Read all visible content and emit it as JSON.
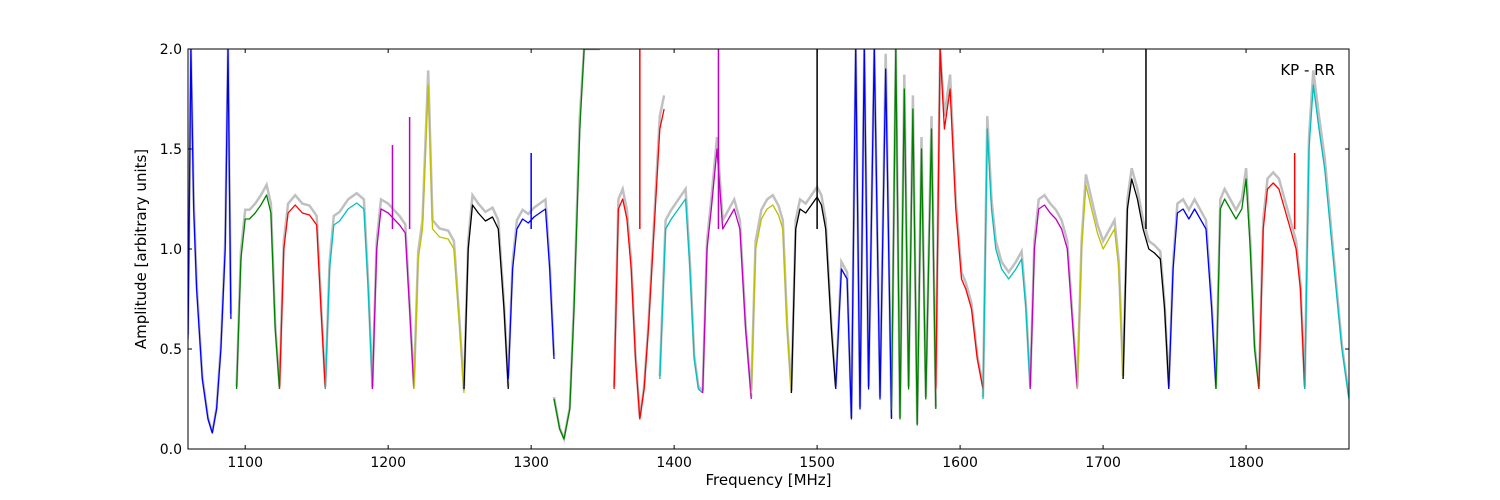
{
  "chart_data": {
    "type": "line",
    "annotation": "KP - RR",
    "xlabel": "Frequency [MHz]",
    "ylabel": "Amplitude [arbitrary units]",
    "xlim": [
      1060,
      1872
    ],
    "ylim": [
      0,
      2.0
    ],
    "xticks": [
      1100,
      1200,
      1300,
      1400,
      1500,
      1600,
      1700,
      1800
    ],
    "yticks": [
      0.0,
      0.5,
      1.0,
      1.5,
      2.0
    ],
    "xtick_labels": [
      "1100",
      "1200",
      "1300",
      "1400",
      "1500",
      "1600",
      "1700",
      "1800"
    ],
    "ytick_labels": [
      "0.0",
      "0.5",
      "1.0",
      "1.5",
      "2.0"
    ],
    "grid": false,
    "background_color": "#c0c0c0",
    "series": [
      {
        "color": "#0000ff",
        "x": [
          1060,
          1062,
          1064,
          1066,
          1070,
          1074,
          1077,
          1080,
          1083,
          1086,
          1088,
          1090
        ],
        "y": [
          0.55,
          2.0,
          1.2,
          0.8,
          0.35,
          0.15,
          0.08,
          0.2,
          0.5,
          1.0,
          2.0,
          0.65
        ]
      },
      {
        "color": "#008000",
        "x": [
          1094,
          1097,
          1100,
          1103,
          1107,
          1111,
          1115,
          1118,
          1121,
          1124
        ],
        "y": [
          0.3,
          0.95,
          1.15,
          1.15,
          1.18,
          1.22,
          1.27,
          1.18,
          0.6,
          0.3
        ]
      },
      {
        "color": "#ff0000",
        "x": [
          1124,
          1127,
          1130,
          1135,
          1140,
          1145,
          1150,
          1153,
          1156
        ],
        "y": [
          0.3,
          1.0,
          1.18,
          1.22,
          1.18,
          1.17,
          1.12,
          0.7,
          0.3
        ]
      },
      {
        "color": "#00bfbf",
        "x": [
          1156,
          1159,
          1162,
          1166,
          1172,
          1178,
          1183,
          1186,
          1189
        ],
        "y": [
          0.3,
          0.9,
          1.12,
          1.14,
          1.2,
          1.23,
          1.2,
          0.8,
          0.3
        ]
      },
      {
        "color": "#bf00bf",
        "x": [
          1189,
          1192,
          1195,
          1200,
          1204,
          1208,
          1212,
          1215,
          1218
        ],
        "y": [
          0.3,
          1.0,
          1.2,
          1.18,
          1.15,
          1.12,
          1.08,
          0.7,
          0.3
        ]
      },
      {
        "color": "#bfbf00",
        "x": [
          1218,
          1221,
          1224,
          1228,
          1231,
          1236,
          1242,
          1246,
          1250,
          1253
        ],
        "y": [
          0.3,
          0.95,
          1.1,
          1.82,
          1.1,
          1.06,
          1.05,
          1.0,
          0.6,
          0.28
        ]
      },
      {
        "color": "#000000",
        "x": [
          1253,
          1256,
          1259,
          1263,
          1268,
          1273,
          1277,
          1281,
          1284
        ],
        "y": [
          0.3,
          1.0,
          1.22,
          1.18,
          1.14,
          1.16,
          1.1,
          0.7,
          0.3
        ]
      },
      {
        "color": "#0000ff",
        "x": [
          1284,
          1287,
          1290,
          1294,
          1298,
          1302,
          1306,
          1310,
          1313,
          1316
        ],
        "y": [
          0.35,
          0.9,
          1.1,
          1.15,
          1.13,
          1.16,
          1.18,
          1.2,
          0.9,
          0.45
        ]
      },
      {
        "color": "#008000",
        "x": [
          1316,
          1320,
          1323,
          1327,
          1330,
          1334,
          1337,
          1341,
          1344,
          1348
        ],
        "y": [
          0.25,
          0.1,
          0.05,
          0.2,
          0.7,
          1.6,
          2.0,
          2.0,
          2.0,
          2.0
        ]
      },
      {
        "color": "#ff0000",
        "x": [
          1358,
          1361,
          1364,
          1367,
          1370,
          1373,
          1376,
          1379,
          1382,
          1386,
          1390,
          1393
        ],
        "y": [
          0.3,
          1.2,
          1.25,
          1.15,
          0.9,
          0.45,
          0.15,
          0.3,
          0.6,
          1.1,
          1.6,
          1.7
        ]
      },
      {
        "color": "#00bfbf",
        "x": [
          1390,
          1394,
          1398,
          1403,
          1408,
          1411,
          1414,
          1417,
          1420
        ],
        "y": [
          0.35,
          1.1,
          1.15,
          1.2,
          1.25,
          0.9,
          0.45,
          0.3,
          0.28
        ]
      },
      {
        "color": "#bf00bf",
        "x": [
          1420,
          1423,
          1426,
          1430,
          1434,
          1438,
          1442,
          1446,
          1450,
          1454
        ],
        "y": [
          0.28,
          1.0,
          1.2,
          1.5,
          1.1,
          1.15,
          1.2,
          1.1,
          0.6,
          0.25
        ]
      },
      {
        "color": "#bfbf00",
        "x": [
          1454,
          1457,
          1461,
          1465,
          1469,
          1473,
          1476,
          1479,
          1482
        ],
        "y": [
          0.28,
          1.0,
          1.15,
          1.2,
          1.22,
          1.17,
          1.1,
          0.6,
          0.28
        ]
      },
      {
        "color": "#000000",
        "x": [
          1482,
          1485,
          1488,
          1492,
          1496,
          1500,
          1503,
          1506,
          1510,
          1513
        ],
        "y": [
          0.28,
          1.1,
          1.2,
          1.18,
          1.22,
          1.26,
          1.22,
          1.1,
          0.6,
          0.3
        ]
      },
      {
        "color": "#0000ff",
        "x": [
          1513,
          1517,
          1521,
          1524,
          1527,
          1530,
          1533,
          1536,
          1540,
          1544,
          1548,
          1552
        ],
        "y": [
          0.3,
          0.9,
          0.85,
          0.15,
          2.0,
          0.2,
          2.0,
          0.3,
          2.0,
          0.25,
          1.9,
          0.15
        ]
      },
      {
        "color": "#008000",
        "x": [
          1552,
          1555,
          1558,
          1561,
          1564,
          1567,
          1570,
          1573,
          1576,
          1580,
          1583
        ],
        "y": [
          0.2,
          2.0,
          0.15,
          1.8,
          0.3,
          1.7,
          0.12,
          1.5,
          0.25,
          1.6,
          0.2
        ]
      },
      {
        "color": "#ff0000",
        "x": [
          1583,
          1586,
          1589,
          1593,
          1597,
          1601,
          1604,
          1608,
          1612,
          1616
        ],
        "y": [
          0.3,
          2.0,
          1.6,
          1.8,
          1.2,
          0.85,
          0.8,
          0.7,
          0.45,
          0.3
        ]
      },
      {
        "color": "#00bfbf",
        "x": [
          1616,
          1619,
          1622,
          1625,
          1629,
          1634,
          1639,
          1643,
          1646,
          1649
        ],
        "y": [
          0.25,
          1.6,
          1.2,
          1.0,
          0.9,
          0.85,
          0.9,
          0.95,
          0.7,
          0.3
        ]
      },
      {
        "color": "#bf00bf",
        "x": [
          1649,
          1652,
          1655,
          1659,
          1663,
          1667,
          1671,
          1675,
          1679,
          1682
        ],
        "y": [
          0.3,
          1.0,
          1.2,
          1.22,
          1.18,
          1.15,
          1.1,
          1.0,
          0.6,
          0.3
        ]
      },
      {
        "color": "#bfbf00",
        "x": [
          1682,
          1685,
          1688,
          1692,
          1696,
          1700,
          1704,
          1708,
          1711,
          1714
        ],
        "y": [
          0.3,
          1.0,
          1.32,
          1.2,
          1.08,
          1.0,
          1.05,
          1.1,
          0.9,
          0.35
        ]
      },
      {
        "color": "#000000",
        "x": [
          1714,
          1717,
          1720,
          1724,
          1728,
          1732,
          1736,
          1740,
          1743,
          1746
        ],
        "y": [
          0.35,
          1.2,
          1.35,
          1.25,
          1.1,
          1.0,
          0.98,
          0.95,
          0.7,
          0.3
        ]
      },
      {
        "color": "#0000ff",
        "x": [
          1746,
          1749,
          1752,
          1756,
          1760,
          1764,
          1768,
          1772,
          1776,
          1779
        ],
        "y": [
          0.3,
          0.9,
          1.18,
          1.2,
          1.15,
          1.2,
          1.15,
          1.1,
          0.7,
          0.3
        ]
      },
      {
        "color": "#008000",
        "x": [
          1779,
          1782,
          1785,
          1789,
          1793,
          1797,
          1800,
          1803,
          1806,
          1809
        ],
        "y": [
          0.3,
          1.2,
          1.25,
          1.2,
          1.15,
          1.2,
          1.35,
          1.0,
          0.5,
          0.3
        ]
      },
      {
        "color": "#ff0000",
        "x": [
          1809,
          1812,
          1815,
          1819,
          1823,
          1827,
          1831,
          1835,
          1838,
          1841
        ],
        "y": [
          0.3,
          1.1,
          1.3,
          1.33,
          1.3,
          1.2,
          1.1,
          1.0,
          0.8,
          0.3
        ]
      },
      {
        "color": "#00bfbf",
        "x": [
          1841,
          1844,
          1847,
          1851,
          1855,
          1859,
          1863,
          1867,
          1872
        ],
        "y": [
          0.3,
          1.5,
          1.82,
          1.6,
          1.4,
          1.1,
          0.8,
          0.5,
          0.25
        ]
      }
    ],
    "spikes": [
      {
        "color": "#0000ff",
        "x": 1300,
        "y": 1.48
      },
      {
        "color": "#bf00bf",
        "x": 1215,
        "y": 1.66
      },
      {
        "color": "#bf00bf",
        "x": 1203,
        "y": 1.52
      },
      {
        "color": "#bf00bf",
        "x": 1431,
        "y": 2.0
      },
      {
        "color": "#ff0000",
        "x": 1376,
        "y": 2.0
      },
      {
        "color": "#ff0000",
        "x": 1834,
        "y": 1.48
      },
      {
        "color": "#000000",
        "x": 1500,
        "y": 2.0
      },
      {
        "color": "#000000",
        "x": 1730,
        "y": 2.0
      }
    ]
  }
}
